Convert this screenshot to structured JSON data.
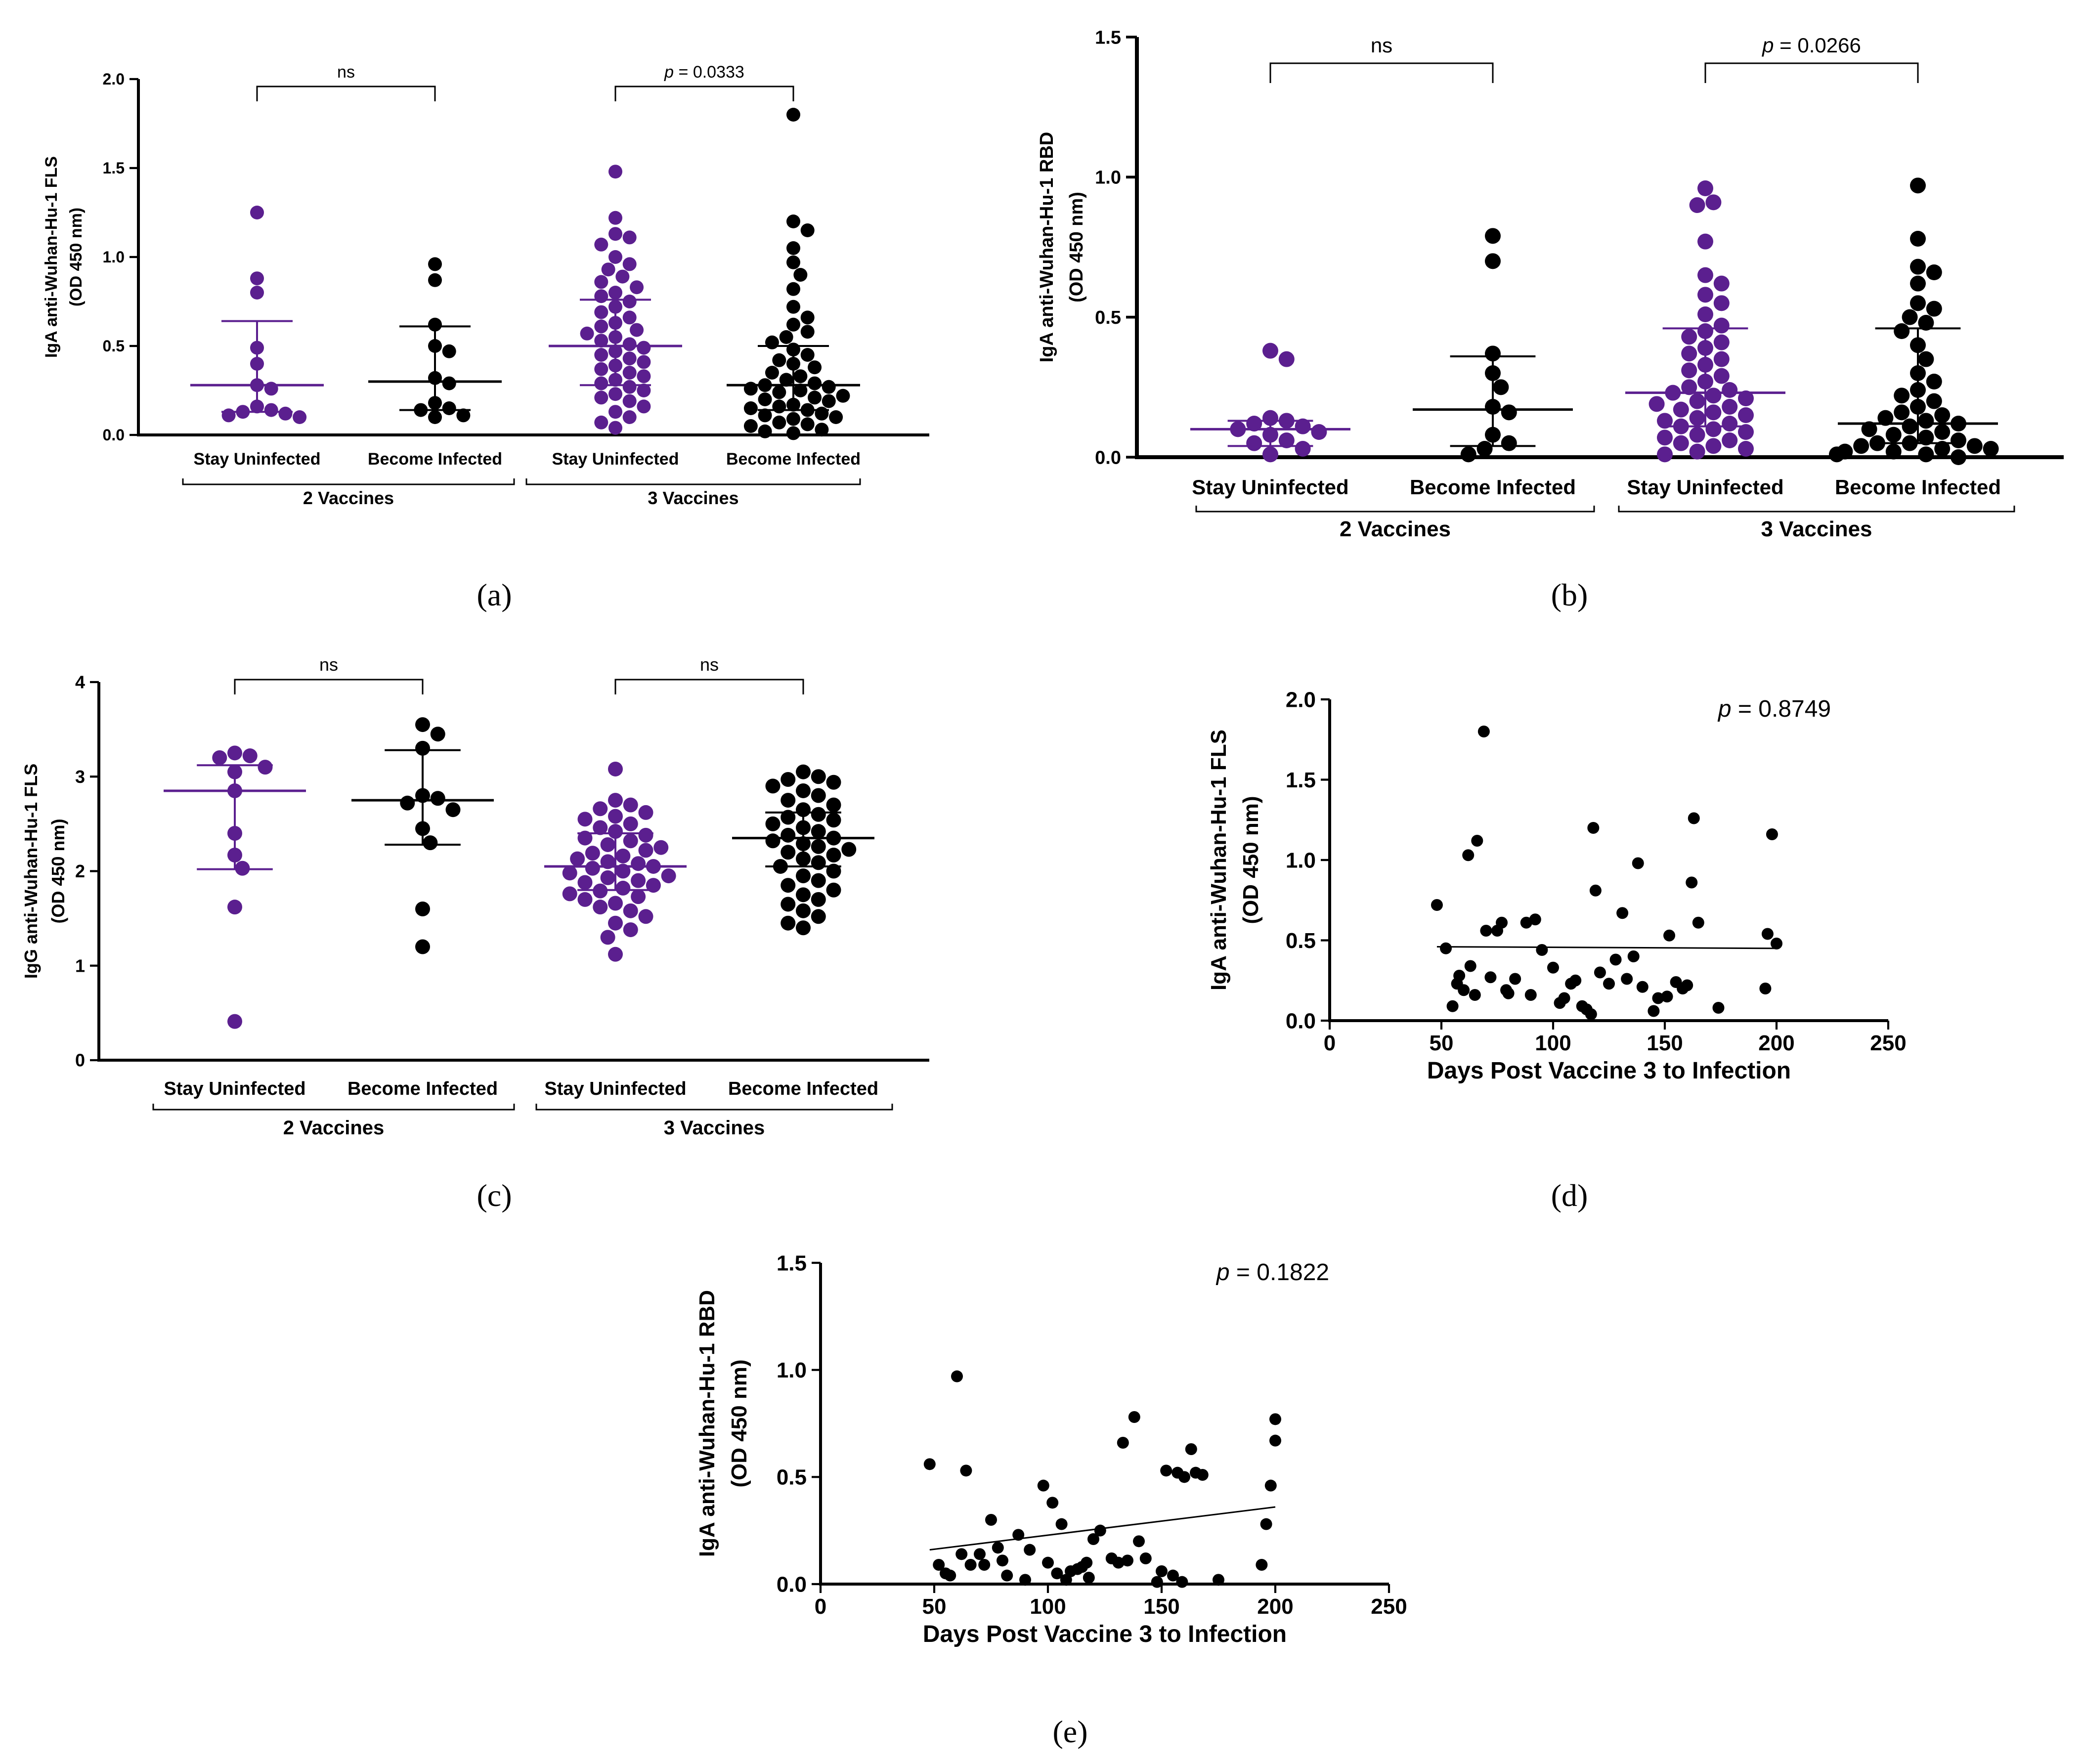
{
  "colors": {
    "purple": "#5b1f8f",
    "black": "#000000"
  },
  "chart_data": [
    {
      "id": "a",
      "type": "scatter",
      "subtype": "dot-plot",
      "panel_label": "(a)",
      "ylabel_line1": "IgA anti-Wuhan-Hu-1 FLS",
      "ylabel_line2": "(OD 450 nm)",
      "ylim": [
        0,
        2.0
      ],
      "yticks": [
        0,
        0.5,
        1.0,
        1.5,
        2.0
      ],
      "ytick_labels": [
        "0.0",
        "0.5",
        "1.0",
        "1.5",
        "2.0"
      ],
      "categories": [
        "Stay Uninfected",
        "Become Infected",
        "Stay Uninfected",
        "Become Infected"
      ],
      "groups": [
        "2 Vaccines",
        "3 Vaccines"
      ],
      "comparisons": [
        {
          "pair": [
            0,
            1
          ],
          "label": "ns"
        },
        {
          "pair": [
            2,
            3
          ],
          "label": "p = 0.0333"
        }
      ],
      "series": [
        {
          "name": "2 Vaccines - Stay Uninfected",
          "color": "purple",
          "center": 0.28,
          "error": [
            0.13,
            0.64
          ],
          "values": [
            1.25,
            0.88,
            0.8,
            0.49,
            0.4,
            0.28,
            0.26,
            0.16,
            0.14,
            0.13,
            0.12,
            0.11,
            0.1
          ]
        },
        {
          "name": "2 Vaccines - Become Infected",
          "color": "black",
          "center": 0.3,
          "error": [
            0.14,
            0.61
          ],
          "values": [
            0.96,
            0.87,
            0.62,
            0.5,
            0.47,
            0.32,
            0.29,
            0.18,
            0.15,
            0.14,
            0.11,
            0.1
          ]
        },
        {
          "name": "3 Vaccines - Stay Uninfected",
          "color": "purple",
          "center": 0.5,
          "error": [
            0.28,
            0.76
          ],
          "values": [
            1.48,
            1.22,
            1.13,
            1.11,
            1.07,
            1.0,
            0.96,
            0.93,
            0.89,
            0.86,
            0.83,
            0.8,
            0.78,
            0.75,
            0.72,
            0.69,
            0.66,
            0.63,
            0.61,
            0.59,
            0.57,
            0.55,
            0.53,
            0.51,
            0.49,
            0.47,
            0.45,
            0.43,
            0.41,
            0.39,
            0.37,
            0.35,
            0.33,
            0.31,
            0.29,
            0.27,
            0.25,
            0.23,
            0.21,
            0.19,
            0.16,
            0.13,
            0.1,
            0.07,
            0.04
          ]
        },
        {
          "name": "3 Vaccines - Become Infected",
          "color": "black",
          "center": 0.28,
          "error": [
            0.14,
            0.5
          ],
          "values": [
            1.8,
            1.2,
            1.15,
            1.05,
            0.97,
            0.9,
            0.82,
            0.72,
            0.66,
            0.62,
            0.58,
            0.55,
            0.52,
            0.48,
            0.45,
            0.42,
            0.4,
            0.38,
            0.35,
            0.33,
            0.31,
            0.29,
            0.28,
            0.27,
            0.26,
            0.25,
            0.24,
            0.22,
            0.21,
            0.2,
            0.19,
            0.17,
            0.16,
            0.15,
            0.14,
            0.12,
            0.11,
            0.1,
            0.09,
            0.07,
            0.06,
            0.05,
            0.03,
            0.02,
            0.01
          ]
        }
      ]
    },
    {
      "id": "b",
      "type": "scatter",
      "subtype": "dot-plot",
      "panel_label": "(b)",
      "ylabel_line1": "IgA anti-Wuhan-Hu-1 RBD",
      "ylabel_line2": "(OD 450 nm)",
      "ylim": [
        0,
        1.5
      ],
      "yticks": [
        0,
        0.5,
        1.0,
        1.5
      ],
      "ytick_labels": [
        "0.0",
        "0.5",
        "1.0",
        "1.5"
      ],
      "categories": [
        "Stay Uninfected",
        "Become Infected",
        "Stay Uninfected",
        "Become Infected"
      ],
      "groups": [
        "2 Vaccines",
        "3 Vaccines"
      ],
      "comparisons": [
        {
          "pair": [
            0,
            1
          ],
          "label": "ns"
        },
        {
          "pair": [
            2,
            3
          ],
          "label": "p = 0.0266"
        }
      ],
      "series": [
        {
          "name": "2 Vaccines - Stay Uninfected",
          "color": "purple",
          "center": 0.1,
          "error": [
            0.04,
            0.13
          ],
          "values": [
            0.38,
            0.35,
            0.14,
            0.13,
            0.12,
            0.11,
            0.1,
            0.09,
            0.08,
            0.06,
            0.05,
            0.03,
            0.01
          ]
        },
        {
          "name": "2 Vaccines - Become Infected",
          "color": "black",
          "center": 0.17,
          "error": [
            0.04,
            0.36
          ],
          "values": [
            0.79,
            0.7,
            0.37,
            0.3,
            0.25,
            0.18,
            0.16,
            0.08,
            0.05,
            0.03,
            0.01
          ]
        },
        {
          "name": "3 Vaccines - Stay Uninfected",
          "color": "purple",
          "center": 0.23,
          "error": [
            0.11,
            0.46
          ],
          "values": [
            0.96,
            0.91,
            0.9,
            0.77,
            0.65,
            0.62,
            0.58,
            0.55,
            0.51,
            0.47,
            0.45,
            0.43,
            0.41,
            0.39,
            0.37,
            0.35,
            0.33,
            0.31,
            0.29,
            0.27,
            0.25,
            0.24,
            0.23,
            0.22,
            0.21,
            0.2,
            0.19,
            0.18,
            0.17,
            0.16,
            0.15,
            0.14,
            0.13,
            0.12,
            0.11,
            0.1,
            0.09,
            0.08,
            0.07,
            0.06,
            0.05,
            0.04,
            0.03,
            0.02,
            0.01
          ]
        },
        {
          "name": "3 Vaccines - Become Infected",
          "color": "black",
          "center": 0.12,
          "error": [
            0.05,
            0.46
          ],
          "values": [
            0.97,
            0.78,
            0.68,
            0.66,
            0.62,
            0.55,
            0.53,
            0.5,
            0.48,
            0.45,
            0.4,
            0.35,
            0.3,
            0.27,
            0.24,
            0.22,
            0.2,
            0.18,
            0.16,
            0.15,
            0.14,
            0.13,
            0.12,
            0.11,
            0.1,
            0.09,
            0.08,
            0.07,
            0.06,
            0.05,
            0.05,
            0.04,
            0.04,
            0.03,
            0.03,
            0.02,
            0.02,
            0.01,
            0.01,
            0.0
          ]
        }
      ]
    },
    {
      "id": "c",
      "type": "scatter",
      "subtype": "dot-plot",
      "panel_label": "(c)",
      "ylabel_line1": "IgG anti-Wuhan-Hu-1 FLS",
      "ylabel_line2": "(OD 450 nm)",
      "ylim": [
        0,
        4
      ],
      "yticks": [
        0,
        1,
        2,
        3,
        4
      ],
      "ytick_labels": [
        "0",
        "1",
        "2",
        "3",
        "4"
      ],
      "categories": [
        "Stay Uninfected",
        "Become Infected",
        "Stay Uninfected",
        "Become Infected"
      ],
      "groups": [
        "2 Vaccines",
        "3 Vaccines"
      ],
      "comparisons": [
        {
          "pair": [
            0,
            1
          ],
          "label": "ns"
        },
        {
          "pair": [
            2,
            3
          ],
          "label": "ns"
        }
      ],
      "series": [
        {
          "name": "2 Vaccines - Stay Uninfected",
          "color": "purple",
          "center": 2.85,
          "error": [
            2.02,
            3.12
          ],
          "values": [
            3.25,
            3.22,
            3.2,
            3.1,
            3.05,
            2.85,
            2.4,
            2.17,
            2.03,
            1.62,
            0.41
          ]
        },
        {
          "name": "2 Vaccines - Become Infected",
          "color": "black",
          "center": 2.75,
          "error": [
            2.28,
            3.28
          ],
          "values": [
            3.55,
            3.45,
            3.3,
            2.8,
            2.77,
            2.72,
            2.65,
            2.45,
            2.3,
            1.6,
            1.2
          ]
        },
        {
          "name": "3 Vaccines - Stay Uninfected",
          "color": "purple",
          "center": 2.05,
          "error": [
            1.8,
            2.4
          ],
          "values": [
            3.08,
            2.75,
            2.7,
            2.66,
            2.62,
            2.58,
            2.55,
            2.5,
            2.46,
            2.42,
            2.38,
            2.35,
            2.32,
            2.28,
            2.25,
            2.22,
            2.19,
            2.16,
            2.13,
            2.1,
            2.08,
            2.05,
            2.03,
            2.0,
            1.98,
            1.95,
            1.93,
            1.9,
            1.88,
            1.85,
            1.82,
            1.79,
            1.76,
            1.73,
            1.7,
            1.66,
            1.62,
            1.58,
            1.52,
            1.45,
            1.38,
            1.3,
            1.12
          ]
        },
        {
          "name": "3 Vaccines - Become Infected",
          "color": "black",
          "center": 2.35,
          "error": [
            2.05,
            2.62
          ],
          "values": [
            3.05,
            3.0,
            2.97,
            2.94,
            2.9,
            2.85,
            2.8,
            2.75,
            2.7,
            2.65,
            2.6,
            2.57,
            2.54,
            2.5,
            2.46,
            2.42,
            2.38,
            2.35,
            2.32,
            2.29,
            2.26,
            2.23,
            2.2,
            2.17,
            2.13,
            2.09,
            2.05,
            2.0,
            1.95,
            1.9,
            1.85,
            1.8,
            1.75,
            1.7,
            1.65,
            1.58,
            1.52,
            1.45,
            1.4
          ]
        }
      ]
    },
    {
      "id": "d",
      "type": "scatter",
      "panel_label": "(d)",
      "title": "p = 0.8749",
      "xlabel": "Days Post Vaccine 3 to Infection",
      "ylabel_line1": "IgA anti-Wuhan-Hu-1 FLS",
      "ylabel_line2": "(OD 450 nm)",
      "xlim": [
        0,
        250
      ],
      "ylim": [
        0,
        2.0
      ],
      "xticks": [
        0,
        50,
        100,
        150,
        200,
        250
      ],
      "yticks": [
        0,
        0.5,
        1.0,
        1.5,
        2.0
      ],
      "ytick_labels": [
        "0.0",
        "0.5",
        "1.0",
        "1.5",
        "2.0"
      ],
      "fit_line": {
        "x": [
          48,
          200
        ],
        "y": [
          0.46,
          0.45
        ]
      },
      "points": [
        [
          48,
          0.72
        ],
        [
          52,
          0.45
        ],
        [
          55,
          0.09
        ],
        [
          57,
          0.23
        ],
        [
          58,
          0.28
        ],
        [
          60,
          0.19
        ],
        [
          62,
          1.03
        ],
        [
          63,
          0.34
        ],
        [
          65,
          0.16
        ],
        [
          66,
          1.12
        ],
        [
          69,
          1.8
        ],
        [
          70,
          0.56
        ],
        [
          72,
          0.27
        ],
        [
          75,
          0.56
        ],
        [
          77,
          0.61
        ],
        [
          79,
          0.19
        ],
        [
          80,
          0.17
        ],
        [
          83,
          0.26
        ],
        [
          88,
          0.61
        ],
        [
          90,
          0.16
        ],
        [
          92,
          0.63
        ],
        [
          95,
          0.44
        ],
        [
          100,
          0.33
        ],
        [
          103,
          0.11
        ],
        [
          105,
          0.14
        ],
        [
          108,
          0.23
        ],
        [
          110,
          0.25
        ],
        [
          113,
          0.09
        ],
        [
          115,
          0.07
        ],
        [
          117,
          0.04
        ],
        [
          118,
          1.2
        ],
        [
          119,
          0.81
        ],
        [
          121,
          0.3
        ],
        [
          125,
          0.23
        ],
        [
          128,
          0.38
        ],
        [
          131,
          0.67
        ],
        [
          133,
          0.26
        ],
        [
          136,
          0.4
        ],
        [
          138,
          0.98
        ],
        [
          140,
          0.21
        ],
        [
          145,
          0.06
        ],
        [
          147,
          0.14
        ],
        [
          151,
          0.15
        ],
        [
          152,
          0.53
        ],
        [
          155,
          0.24
        ],
        [
          158,
          0.2
        ],
        [
          160,
          0.22
        ],
        [
          162,
          0.86
        ],
        [
          163,
          1.26
        ],
        [
          165,
          0.61
        ],
        [
          174,
          0.08
        ],
        [
          195,
          0.2
        ],
        [
          196,
          0.54
        ],
        [
          198,
          1.16
        ],
        [
          200,
          0.48
        ]
      ]
    },
    {
      "id": "e",
      "type": "scatter",
      "panel_label": "(e)",
      "title": "p = 0.1822",
      "xlabel": "Days Post Vaccine 3 to Infection",
      "ylabel_line1": "IgA anti-Wuhan-Hu-1 RBD",
      "ylabel_line2": "(OD 450 nm)",
      "xlim": [
        0,
        250
      ],
      "ylim": [
        0,
        1.5
      ],
      "xticks": [
        0,
        50,
        100,
        150,
        200,
        250
      ],
      "yticks": [
        0,
        0.5,
        1.0,
        1.5
      ],
      "ytick_labels": [
        "0.0",
        "0.5",
        "1.0",
        "1.5"
      ],
      "fit_line": {
        "x": [
          48,
          200
        ],
        "y": [
          0.16,
          0.36
        ]
      },
      "points": [
        [
          48,
          0.56
        ],
        [
          52,
          0.09
        ],
        [
          55,
          0.05
        ],
        [
          57,
          0.04
        ],
        [
          60,
          0.97
        ],
        [
          62,
          0.14
        ],
        [
          64,
          0.53
        ],
        [
          66,
          0.09
        ],
        [
          70,
          0.14
        ],
        [
          72,
          0.09
        ],
        [
          75,
          0.3
        ],
        [
          78,
          0.17
        ],
        [
          80,
          0.11
        ],
        [
          82,
          0.04
        ],
        [
          87,
          0.23
        ],
        [
          90,
          0.02
        ],
        [
          92,
          0.16
        ],
        [
          98,
          0.46
        ],
        [
          100,
          0.1
        ],
        [
          102,
          0.38
        ],
        [
          104,
          0.05
        ],
        [
          106,
          0.28
        ],
        [
          108,
          0.02
        ],
        [
          110,
          0.06
        ],
        [
          113,
          0.07
        ],
        [
          115,
          0.08
        ],
        [
          117,
          0.1
        ],
        [
          118,
          0.03
        ],
        [
          120,
          0.21
        ],
        [
          123,
          0.25
        ],
        [
          128,
          0.12
        ],
        [
          131,
          0.1
        ],
        [
          133,
          0.66
        ],
        [
          135,
          0.11
        ],
        [
          138,
          0.78
        ],
        [
          140,
          0.2
        ],
        [
          143,
          0.12
        ],
        [
          148,
          0.01
        ],
        [
          150,
          0.06
        ],
        [
          152,
          0.53
        ],
        [
          155,
          0.04
        ],
        [
          157,
          0.52
        ],
        [
          159,
          0.01
        ],
        [
          160,
          0.5
        ],
        [
          163,
          0.63
        ],
        [
          165,
          0.52
        ],
        [
          168,
          0.51
        ],
        [
          175,
          0.02
        ],
        [
          194,
          0.09
        ],
        [
          196,
          0.28
        ],
        [
          198,
          0.46
        ],
        [
          200,
          0.67
        ],
        [
          200,
          0.77
        ]
      ]
    }
  ]
}
